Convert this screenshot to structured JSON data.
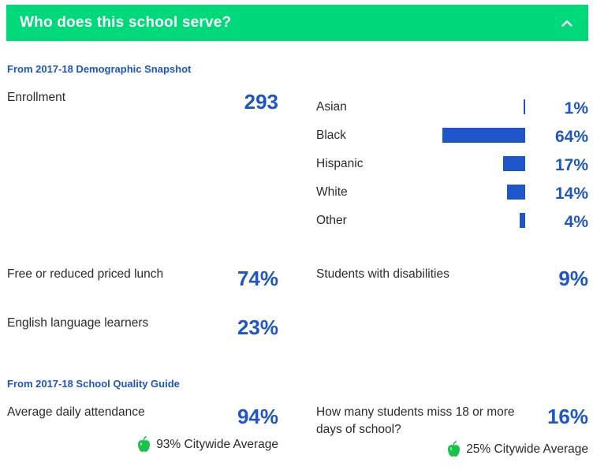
{
  "header": {
    "title": "Who does this school serve?",
    "toggle_icon": "chevron-up-icon"
  },
  "snapshot": {
    "section_label": "From 2017-18 Demographic Snapshot",
    "enrollment": {
      "label": "Enrollment",
      "value": "293"
    },
    "race": [
      {
        "label": "Asian",
        "value": "1%",
        "pct": 1
      },
      {
        "label": "Black",
        "value": "64%",
        "pct": 64
      },
      {
        "label": "Hispanic",
        "value": "17%",
        "pct": 17
      },
      {
        "label": "White",
        "value": "14%",
        "pct": 14
      },
      {
        "label": "Other",
        "value": "4%",
        "pct": 4
      }
    ],
    "lunch": {
      "label": "Free or reduced priced lunch",
      "value": "74%"
    },
    "disabilities": {
      "label": "Students with disabilities",
      "value": "9%"
    },
    "ell": {
      "label": "English language learners",
      "value": "23%"
    }
  },
  "quality": {
    "section_label": "From 2017-18 School Quality Guide",
    "attendance": {
      "label": "Average daily attendance",
      "value": "94%",
      "citywide": "93% Citywide Average"
    },
    "absence": {
      "label": "How many students miss 18 or more days of school?",
      "value": "16%",
      "citywide": "25% Citywide Average"
    }
  },
  "colors": {
    "header_bg": "#00d97a",
    "accent_blue": "#1e55c9",
    "apple_green": "#19c24a"
  }
}
